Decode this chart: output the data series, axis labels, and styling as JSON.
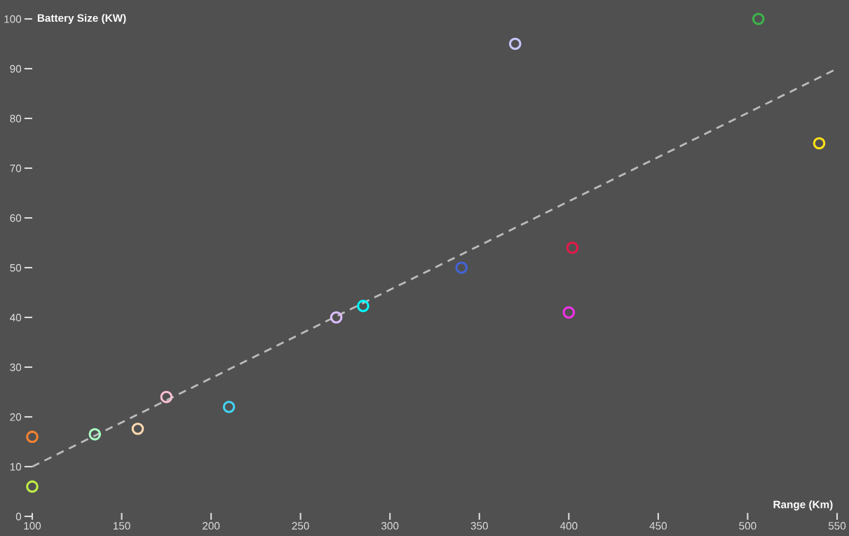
{
  "chart_data": {
    "type": "scatter",
    "xlabel": "Range (Km)",
    "ylabel": "Battery Size (KW)",
    "xlim": [
      100,
      550
    ],
    "xticks": [
      100,
      150,
      200,
      250,
      300,
      350,
      400,
      450,
      500,
      550
    ],
    "ylim": [
      0,
      100
    ],
    "yticks": [
      0,
      10,
      20,
      30,
      40,
      50,
      60,
      70,
      80,
      90,
      100
    ],
    "grid": false,
    "marker": "circle",
    "series": [
      {
        "x": [
          100,
          100,
          135,
          159,
          175,
          210,
          270,
          285,
          340,
          370,
          402,
          400,
          506,
          540
        ],
        "values": [
          16,
          6,
          16.5,
          17.6,
          24,
          22,
          40,
          42.3,
          50,
          95,
          54,
          41,
          100,
          75
        ],
        "colors": [
          "#f58231",
          "#bfef45",
          "#aaffc3",
          "#ffd8b1",
          "#fabed4",
          "#42d4f4",
          "#dcbeff",
          "#00ffff",
          "#4363d8",
          "#c8c8ff",
          "#e6194b",
          "#f032e6",
          "#3cb44b",
          "#ffe119"
        ]
      },
      {
        "type": "line",
        "x": [
          100,
          550
        ],
        "values": [
          10,
          90
        ],
        "color": "#bbbbbb",
        "line_style": "dashed",
        "marker": "none"
      }
    ]
  }
}
